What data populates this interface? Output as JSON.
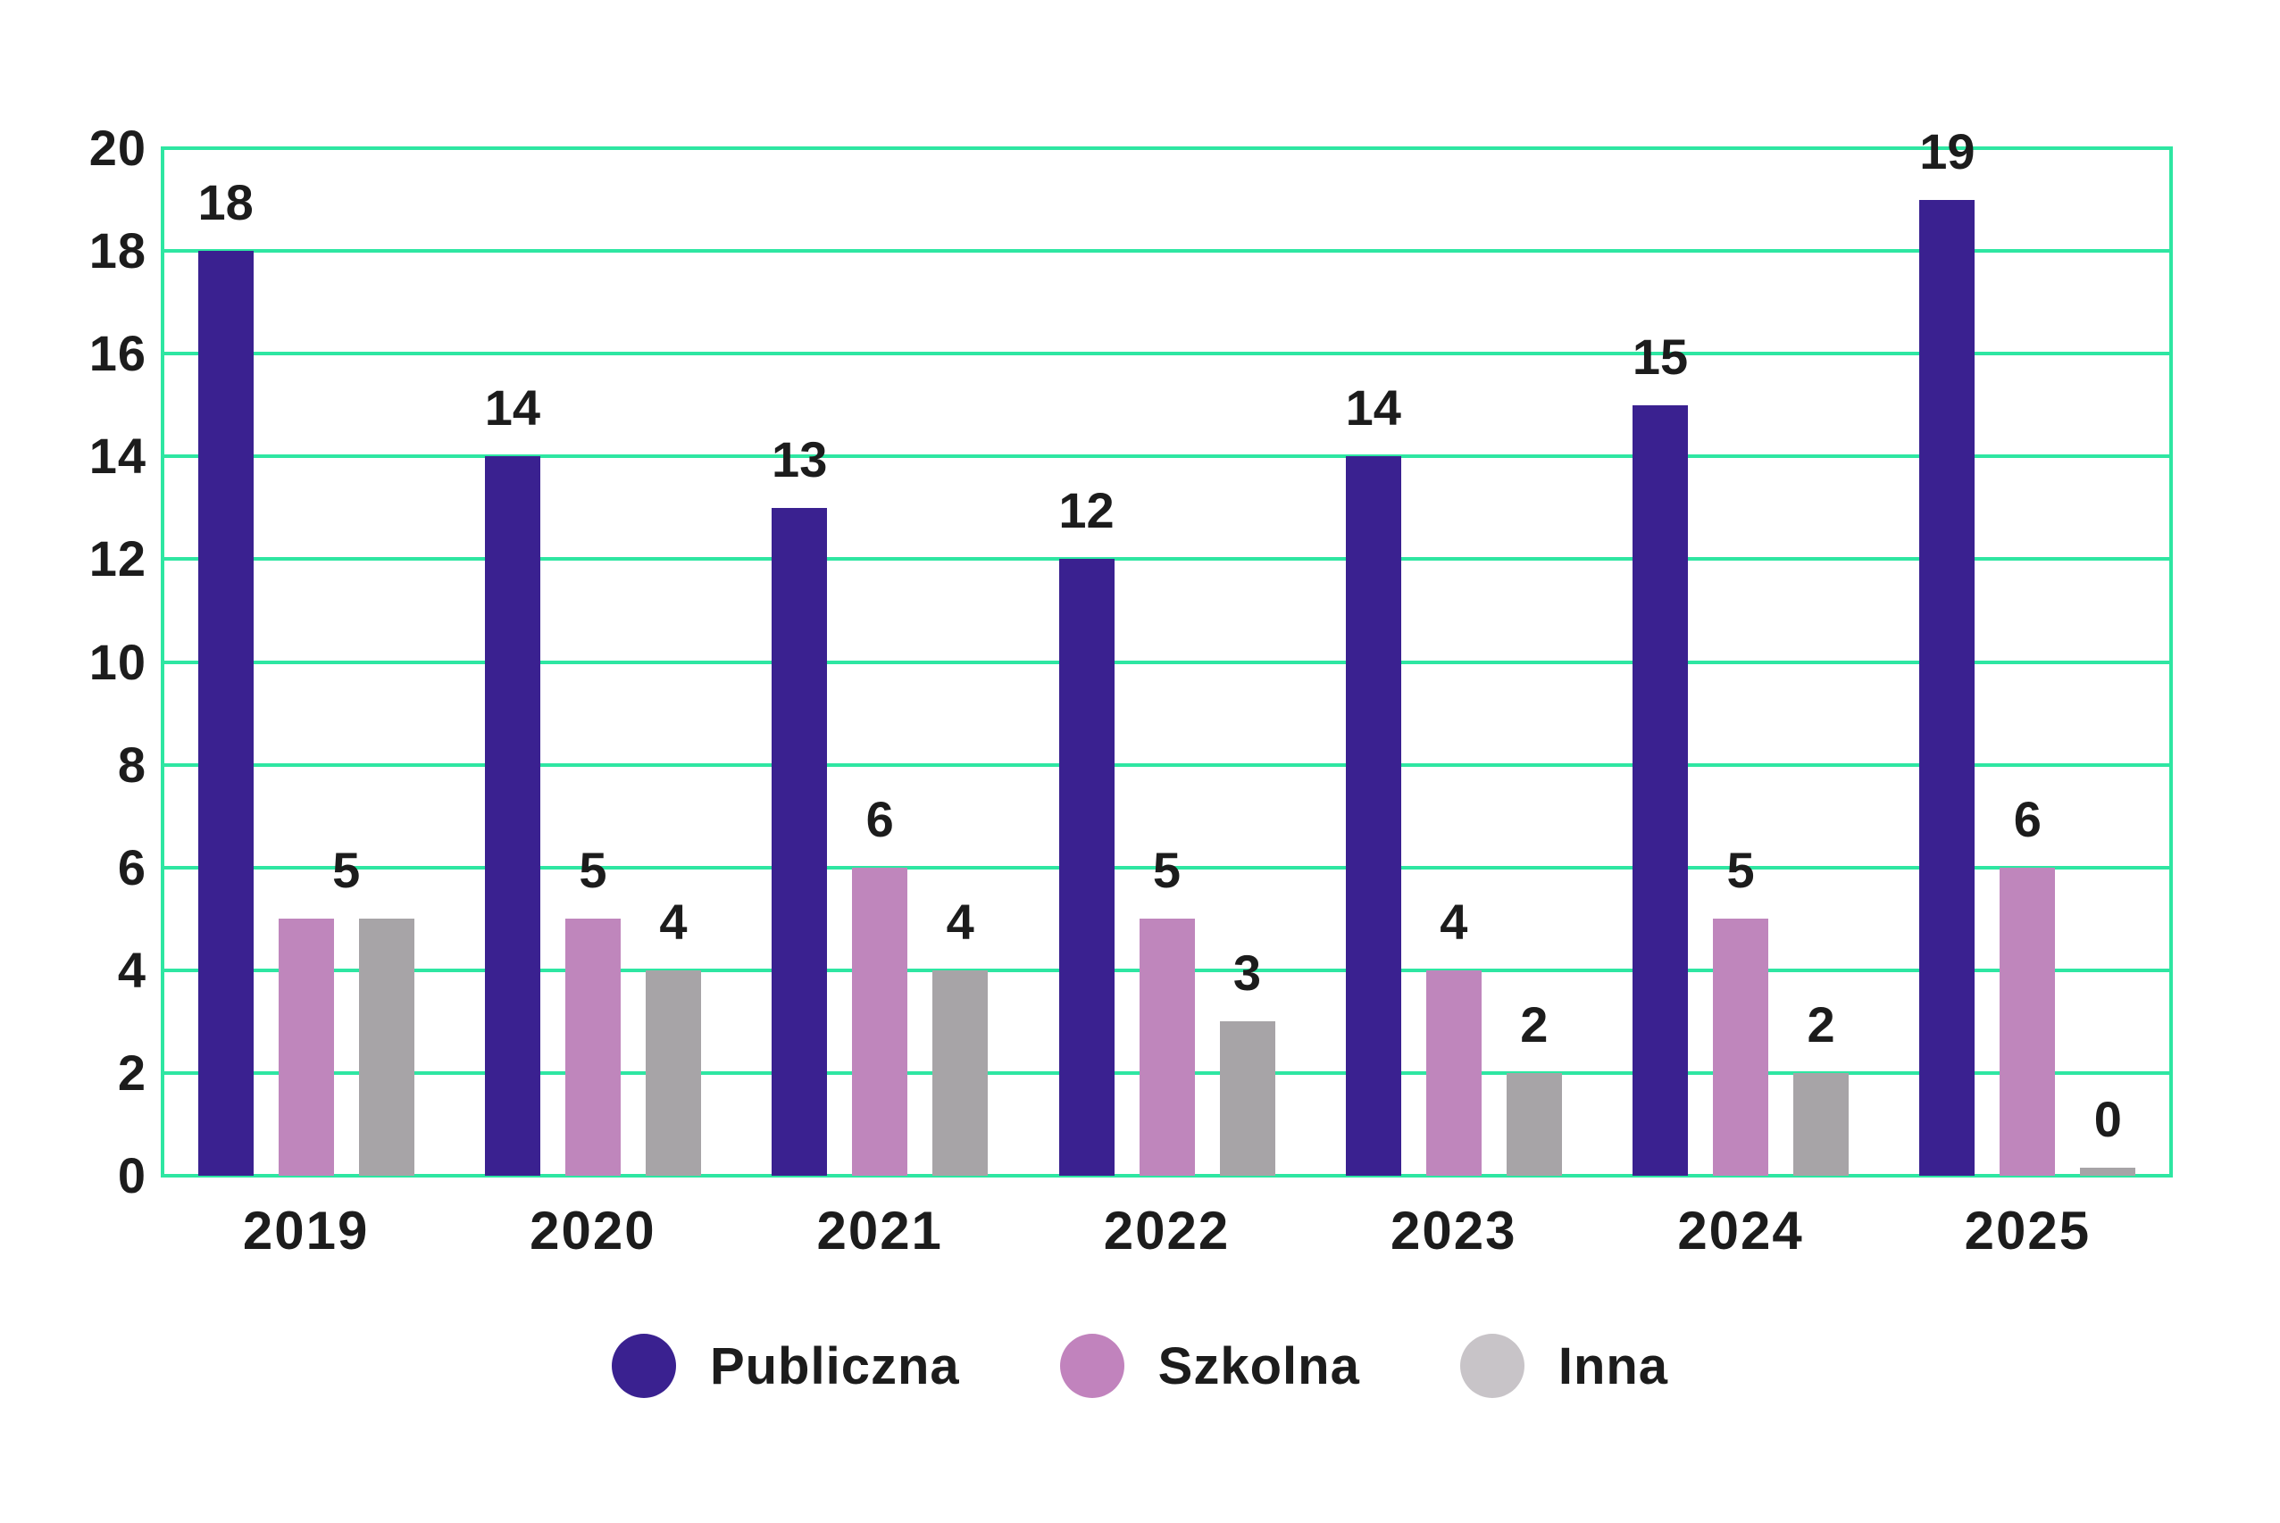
{
  "chart_data": {
    "type": "bar",
    "title": "",
    "xlabel": "",
    "ylabel": "",
    "categories": [
      "2019",
      "2020",
      "2021",
      "2022",
      "2023",
      "2024",
      "2025"
    ],
    "series": [
      {
        "name": "Publiczna",
        "color": "#3a2190",
        "legend_color": "#3a2190",
        "values": [
          18,
          14,
          13,
          12,
          14,
          15,
          19
        ],
        "labels": [
          "18",
          "14",
          "13",
          "12",
          "14",
          "15",
          "19"
        ]
      },
      {
        "name": "Szkolna",
        "color": "#bf86bc",
        "legend_color": "#c183bd",
        "values": [
          5,
          5,
          6,
          5,
          4,
          5,
          6
        ],
        "labels": [
          "5",
          "5",
          "6",
          "5",
          "4",
          "5",
          "6"
        ]
      },
      {
        "name": "Inna",
        "color": "#a7a4a7",
        "legend_color": "#c8c4c8",
        "values": [
          5,
          4,
          4,
          3,
          2,
          2,
          0
        ],
        "labels": [
          "",
          "4",
          "4",
          "3",
          "2",
          "2",
          "0"
        ]
      }
    ],
    "shared_label_note": "In 2019 a single '5' is printed centered between the Szkolna and Inna bars (both equal 5)",
    "ylim": [
      0,
      20
    ],
    "yticks": [
      0,
      2,
      4,
      6,
      8,
      10,
      12,
      14,
      16,
      18,
      20
    ],
    "grid": "horizontal",
    "gridline_color": "#2ee6a2",
    "plot_border_color": "#2ee6a2",
    "background": "#ffffff",
    "text_color": "#1c1c1c",
    "legend_position": "bottom",
    "legend_items": [
      "Publiczna",
      "Szkolna",
      "Inna"
    ]
  }
}
